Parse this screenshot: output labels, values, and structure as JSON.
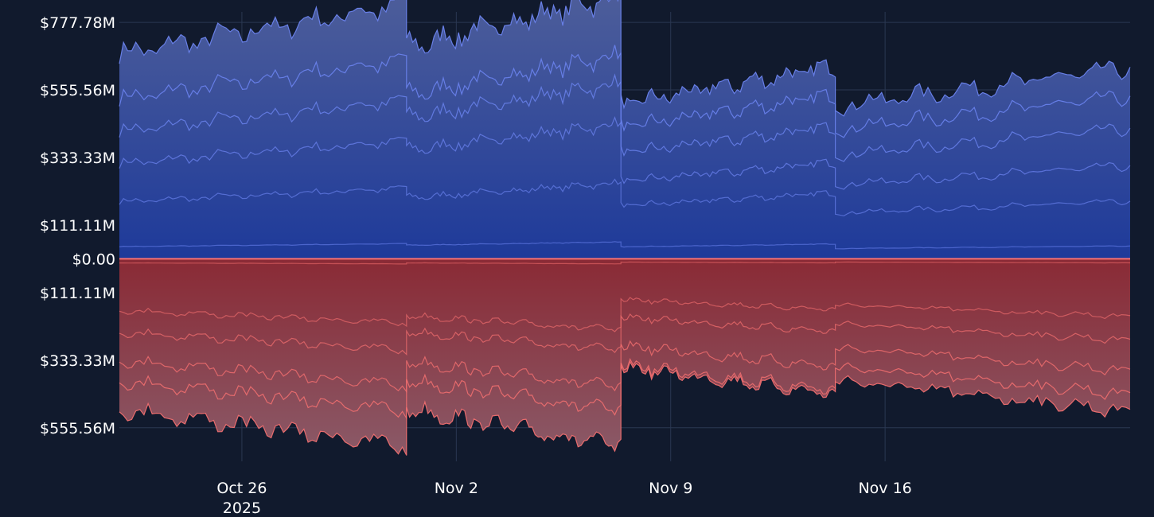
{
  "chart_data": {
    "type": "area",
    "title": "",
    "xlabel": "",
    "ylabel": "",
    "grid": true,
    "legend": "none",
    "x_range": [
      "2025-10-22",
      "2025-11-24"
    ],
    "y_range": [
      -666,
      812
    ],
    "x_ticks": [
      {
        "date": "2025-10-26",
        "label": "Oct 26",
        "sublabel": "2025"
      },
      {
        "date": "2025-11-02",
        "label": "Nov 2",
        "sublabel": ""
      },
      {
        "date": "2025-11-09",
        "label": "Nov 9",
        "sublabel": ""
      },
      {
        "date": "2025-11-16",
        "label": "Nov 16",
        "sublabel": ""
      }
    ],
    "y_ticks": [
      {
        "value": 777.78,
        "label": "$777.78M"
      },
      {
        "value": 555.56,
        "label": "$555.56M"
      },
      {
        "value": 333.33,
        "label": "$333.33M"
      },
      {
        "value": 111.11,
        "label": "$111.11M"
      },
      {
        "value": 0,
        "label": "$0.00"
      },
      {
        "value": -111.11,
        "label": "$111.11M"
      },
      {
        "value": -333.33,
        "label": "$333.33M"
      },
      {
        "value": -555.56,
        "label": "$555.56M"
      }
    ],
    "units": "USD millions",
    "positive": {
      "color": "#6f87f5",
      "fill_light": "#4f5f9a",
      "fill_dark": "#1e3a9a",
      "cumulative_levels": [
        [
          45,
          50,
          44,
          38,
          30
        ],
        [
          210,
          225,
          195,
          170,
          110
        ],
        [
          350,
          400,
          285,
          275,
          175
        ],
        [
          470,
          520,
          390,
          385,
          255
        ],
        [
          590,
          605,
          485,
          480,
          335
        ],
        [
          755,
          780,
          570,
          565,
          545
        ]
      ]
    },
    "negative": {
      "color": "#f87171",
      "fill_light": "#8a5a68",
      "fill_dark": "#8a2a35",
      "cumulative_levels": [
        [
          -15,
          -15,
          -12,
          -12,
          -12
        ],
        [
          -190,
          -210,
          -150,
          -170,
          -135
        ],
        [
          -270,
          -270,
          -215,
          -240,
          -200
        ],
        [
          -375,
          -380,
          -320,
          -330,
          -300
        ],
        [
          -450,
          -450,
          -390,
          -400,
          -375
        ],
        [
          -555,
          -555,
          -400,
          -450,
          -400
        ]
      ]
    },
    "segment_boundaries": [
      "2025-10-22",
      "2025-10-31T09:00",
      "2025-11-07T09:00",
      "2025-11-14T09:00",
      "2025-11-24"
    ]
  }
}
